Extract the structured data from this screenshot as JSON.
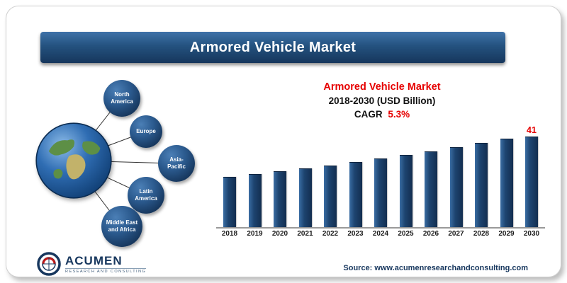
{
  "header": {
    "title": "Armored Vehicle Market"
  },
  "regions": [
    {
      "label": "North America"
    },
    {
      "label": "Europe"
    },
    {
      "label": "Asia-Pacific"
    },
    {
      "label": "Latin America"
    },
    {
      "label": "Middle East and Africa"
    }
  ],
  "chart_title": {
    "line1": "Armored Vehicle Market",
    "line2": "2018-2030  (USD Billion)",
    "cagr_label": "CAGR",
    "cagr_value": "5.3%"
  },
  "chart_data": {
    "type": "bar",
    "title": "Armored Vehicle Market 2018-2030 (USD Billion)",
    "xlabel": "",
    "ylabel": "USD Billion",
    "categories": [
      "2018",
      "2019",
      "2020",
      "2021",
      "2022",
      "2023",
      "2024",
      "2025",
      "2026",
      "2027",
      "2028",
      "2029",
      "2030"
    ],
    "values": [
      22.0,
      23.2,
      24.4,
      25.7,
      27.0,
      28.5,
      30.0,
      31.6,
      33.2,
      35.0,
      36.9,
      38.8,
      41
    ],
    "ylim": [
      0,
      45
    ],
    "grid": false,
    "legend": "none",
    "cagr": "5.3%",
    "annotations": [
      {
        "category": "2030",
        "text": "41"
      }
    ]
  },
  "footer": {
    "source": "Source: www.acumenresearchandconsulting.com",
    "logo_text": "ACUMEN",
    "logo_subtext": "RESEARCH AND CONSULTING"
  },
  "colors": {
    "accent_red": "#e60000",
    "bar_navy": "#17375e",
    "banner_blue": "#1f4e79"
  }
}
